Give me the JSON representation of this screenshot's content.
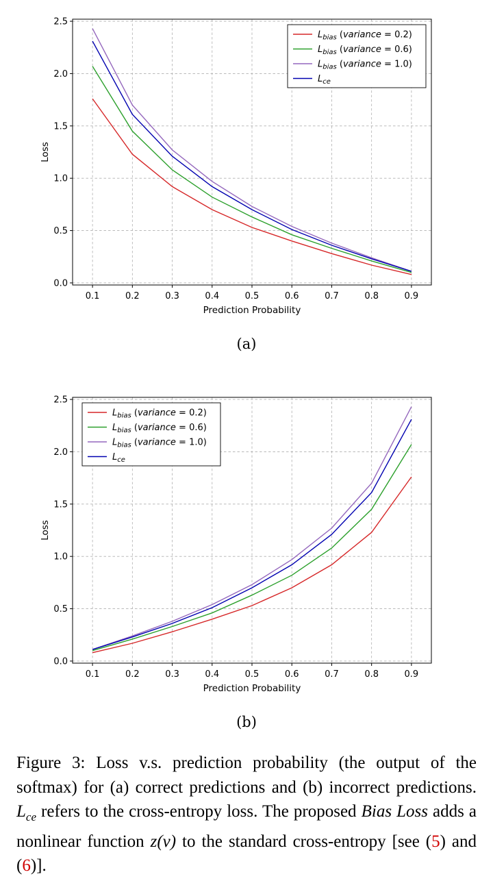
{
  "chart_data": [
    {
      "panel": "(a)",
      "type": "line",
      "x": [
        0.1,
        0.2,
        0.3,
        0.4,
        0.5,
        0.6,
        0.7,
        0.8,
        0.9
      ],
      "xlabel": "Prediction Probability",
      "ylabel": "Loss",
      "xlim": [
        0.05,
        0.95
      ],
      "ylim": [
        -0.02,
        2.52
      ],
      "yticks": [
        "0.0",
        "0.5",
        "1.0",
        "1.5",
        "2.0",
        "2.5"
      ],
      "xticks": [
        "0.1",
        "0.2",
        "0.3",
        "0.4",
        "0.5",
        "0.6",
        "0.7",
        "0.8",
        "0.9"
      ],
      "grid": true,
      "legend_position": "top-right",
      "series": [
        {
          "name": "L_bias (variance = 0.2)",
          "main": "L",
          "sub": "bias",
          "rest": " (variance = 0.2)",
          "color": "#d62728",
          "values": [
            1.76,
            1.23,
            0.92,
            0.7,
            0.53,
            0.4,
            0.28,
            0.17,
            0.08
          ]
        },
        {
          "name": "L_bias (variance = 0.6)",
          "main": "L",
          "sub": "bias",
          "rest": " (variance = 0.6)",
          "color": "#2ca02c",
          "values": [
            2.07,
            1.45,
            1.08,
            0.82,
            0.63,
            0.46,
            0.33,
            0.21,
            0.1
          ]
        },
        {
          "name": "L_bias (variance = 1.0)",
          "main": "L",
          "sub": "bias",
          "rest": " (variance = 1.0)",
          "color": "#9467bd",
          "values": [
            2.43,
            1.7,
            1.27,
            0.97,
            0.73,
            0.54,
            0.38,
            0.24,
            0.11
          ]
        },
        {
          "name": "L_ce",
          "main": "L",
          "sub": "ce",
          "rest": "",
          "color": "#0000b0",
          "values": [
            2.31,
            1.61,
            1.21,
            0.92,
            0.7,
            0.51,
            0.36,
            0.23,
            0.11
          ]
        }
      ]
    },
    {
      "panel": "(b)",
      "type": "line",
      "x": [
        0.1,
        0.2,
        0.3,
        0.4,
        0.5,
        0.6,
        0.7,
        0.8,
        0.9
      ],
      "xlabel": "Prediction Probability",
      "ylabel": "Loss",
      "xlim": [
        0.05,
        0.95
      ],
      "ylim": [
        -0.02,
        2.52
      ],
      "yticks": [
        "0.0",
        "0.5",
        "1.0",
        "1.5",
        "2.0",
        "2.5"
      ],
      "xticks": [
        "0.1",
        "0.2",
        "0.3",
        "0.4",
        "0.5",
        "0.6",
        "0.7",
        "0.8",
        "0.9"
      ],
      "grid": true,
      "legend_position": "top-left",
      "series": [
        {
          "name": "L_bias (variance = 0.2)",
          "main": "L",
          "sub": "bias",
          "rest": " (variance = 0.2)",
          "color": "#d62728",
          "values": [
            0.08,
            0.17,
            0.28,
            0.4,
            0.53,
            0.7,
            0.92,
            1.23,
            1.76
          ]
        },
        {
          "name": "L_bias (variance = 0.6)",
          "main": "L",
          "sub": "bias",
          "rest": " (variance = 0.6)",
          "color": "#2ca02c",
          "values": [
            0.1,
            0.21,
            0.33,
            0.46,
            0.63,
            0.82,
            1.08,
            1.45,
            2.07
          ]
        },
        {
          "name": "L_bias (variance = 1.0)",
          "main": "L",
          "sub": "bias",
          "rest": " (variance = 1.0)",
          "color": "#9467bd",
          "values": [
            0.11,
            0.24,
            0.38,
            0.54,
            0.73,
            0.97,
            1.27,
            1.7,
            2.43
          ]
        },
        {
          "name": "L_ce",
          "main": "L",
          "sub": "ce",
          "rest": "",
          "color": "#0000b0",
          "values": [
            0.11,
            0.23,
            0.36,
            0.51,
            0.7,
            0.92,
            1.21,
            1.61,
            2.31
          ]
        }
      ]
    }
  ],
  "figure": {
    "label_a": "(a)",
    "label_b": "(b)",
    "caption_part1": "Figure 3: Loss v.s. prediction probability (the output of the softmax) for (a) correct predictions and (b) incorrect predictions. ",
    "caption_lce_main": "L",
    "caption_lce_sub": "ce",
    "caption_part2": " refers to the cross-entropy loss. The proposed ",
    "caption_bias_loss": "Bias Loss",
    "caption_part3": " adds a nonlinear function ",
    "caption_zv": "z(v)",
    "caption_part4": " to the standard cross-entropy [see (",
    "caption_ref5": "5",
    "caption_part5": ") and (",
    "caption_ref6": "6",
    "caption_part6": ")]."
  }
}
